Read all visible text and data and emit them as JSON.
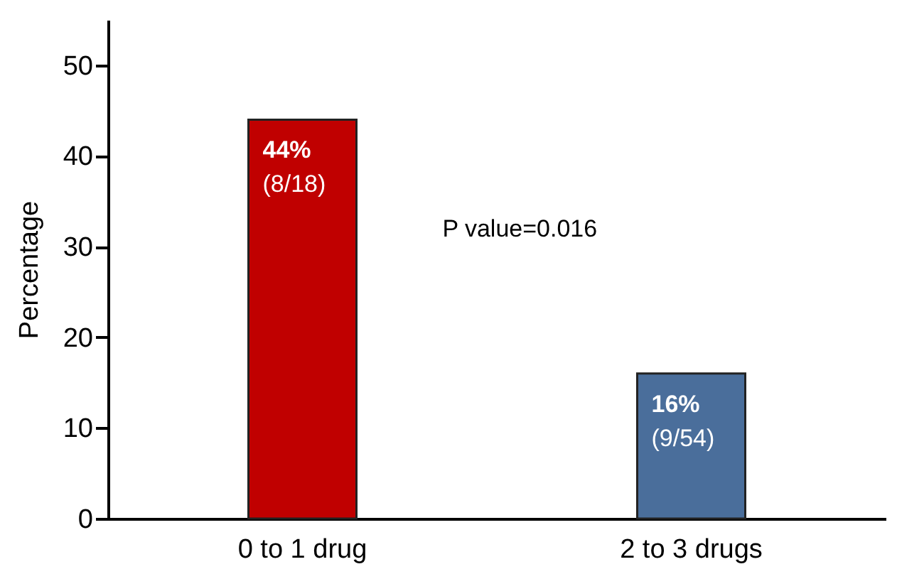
{
  "chart_data": {
    "type": "bar",
    "ylabel": "Percentage",
    "categories": [
      "0 to 1 drug",
      "2 to 3 drugs"
    ],
    "values": [
      44,
      16
    ],
    "colors": [
      "#c00000",
      "#4a6e9b"
    ],
    "value_labels": [
      "44% (8/18)",
      "16% (9/54)"
    ],
    "annotations": [
      "P value=0.016"
    ],
    "ylim": [
      0,
      55
    ],
    "yticks": [
      0,
      10,
      20,
      30,
      40,
      50
    ],
    "grid": false
  }
}
